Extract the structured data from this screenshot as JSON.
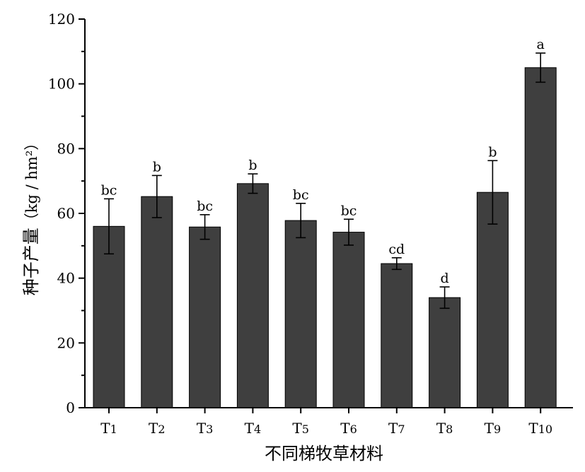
{
  "chart_data": {
    "type": "bar",
    "title": "",
    "xlabel": "不同梯牧草材料",
    "ylabel_main": "种子产量",
    "ylabel_unit": "（kg / hm²）",
    "categories": [
      "T1",
      "T2",
      "T3",
      "T4",
      "T5",
      "T6",
      "T7",
      "T8",
      "T9",
      "T10"
    ],
    "values": [
      56,
      65.2,
      55.8,
      69.2,
      57.8,
      54.2,
      44.5,
      34,
      66.5,
      105
    ],
    "errors": [
      8.5,
      6.5,
      3.8,
      3.0,
      5.3,
      4.0,
      1.8,
      3.3,
      9.8,
      4.5
    ],
    "significance": [
      "bc",
      "b",
      "bc",
      "b",
      "bc",
      "bc",
      "cd",
      "d",
      "b",
      "a"
    ],
    "ylim": [
      0,
      120
    ],
    "yticks": [
      0,
      20,
      40,
      60,
      80,
      100,
      120
    ],
    "grid": false,
    "legend": "none",
    "colors": {
      "bar": "#3f3f3f",
      "axis": "#000000"
    }
  }
}
